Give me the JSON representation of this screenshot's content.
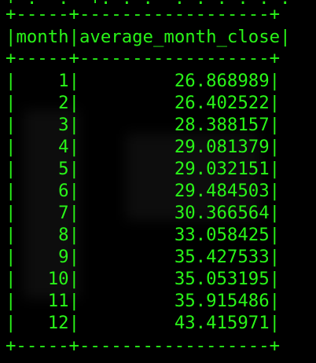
{
  "terminal": {
    "text_color": "#29f518",
    "background_color": "#000000",
    "top_partial_line": "+-. -. -+. . . -. . . . . . -+",
    "border_line": "+-----+------------------+",
    "header": {
      "month": "month",
      "average_month_close": "average_month_close"
    },
    "rows": [
      {
        "month": "1",
        "average_month_close": "26.868989"
      },
      {
        "month": "2",
        "average_month_close": "26.402522"
      },
      {
        "month": "3",
        "average_month_close": "28.388157"
      },
      {
        "month": "4",
        "average_month_close": "29.081379"
      },
      {
        "month": "5",
        "average_month_close": "29.032151"
      },
      {
        "month": "6",
        "average_month_close": "29.484503"
      },
      {
        "month": "7",
        "average_month_close": "30.366564"
      },
      {
        "month": "8",
        "average_month_close": "33.058425"
      },
      {
        "month": "9",
        "average_month_close": "35.427533"
      },
      {
        "month": "10",
        "average_month_close": "35.053195"
      },
      {
        "month": "11",
        "average_month_close": "35.915486"
      },
      {
        "month": "12",
        "average_month_close": "43.415971"
      }
    ]
  }
}
